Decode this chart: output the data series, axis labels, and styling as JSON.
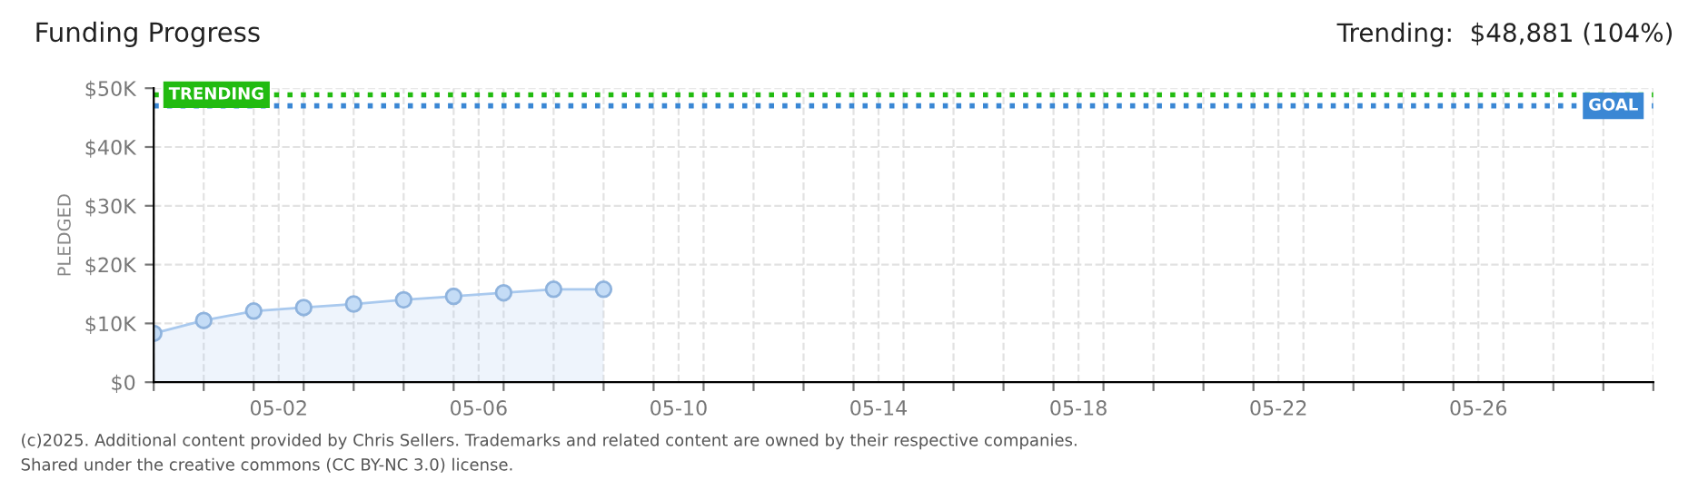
{
  "chart_data": {
    "type": "area",
    "title": "Funding Progress",
    "ylabel": "PLEDGED",
    "annotations": [
      "Trending:  $48,881 (104%)",
      "(c)2025. Additional content provided by Chris Sellers. Trademarks and related content are owned by their respective companies.",
      "Shared under the creative commons (CC BY-NC 3.0) license."
    ],
    "x": [
      "2025-04-30",
      "2025-05-01",
      "2025-05-02",
      "2025-05-03",
      "2025-05-04",
      "2025-05-05",
      "2025-05-06",
      "2025-05-07",
      "2025-05-08",
      "2025-05-09"
    ],
    "series": [
      {
        "color": "#a9c9ee",
        "values": [
          8300,
          10500,
          12100,
          12700,
          13300,
          14000,
          14600,
          15200,
          15800,
          15800
        ]
      }
    ],
    "marker": "circle",
    "grid": true,
    "xlim": [
      "2025-04-30",
      "2025-05-30"
    ],
    "xticks": [
      {
        "value": "2025-04-30",
        "label": null
      },
      {
        "value": "2025-05-01",
        "label": null
      },
      {
        "value": "2025-05-02",
        "label": null
      },
      {
        "value": "2025-05-03",
        "label": null
      },
      {
        "value": "2025-05-04",
        "label": null
      },
      {
        "value": "2025-05-05",
        "label": null
      },
      {
        "value": "2025-05-06",
        "label": null
      },
      {
        "value": "2025-05-07",
        "label": null
      },
      {
        "value": "2025-05-08",
        "label": null
      },
      {
        "value": "2025-05-09",
        "label": null
      },
      {
        "value": "2025-05-10",
        "label": null
      },
      {
        "value": "2025-05-11",
        "label": null
      },
      {
        "value": "2025-05-12",
        "label": null
      },
      {
        "value": "2025-05-13",
        "label": null
      },
      {
        "value": "2025-05-14",
        "label": null
      },
      {
        "value": "2025-05-15",
        "label": null
      },
      {
        "value": "2025-05-16",
        "label": null
      },
      {
        "value": "2025-05-17",
        "label": null
      },
      {
        "value": "2025-05-18",
        "label": null
      },
      {
        "value": "2025-05-19",
        "label": null
      },
      {
        "value": "2025-05-20",
        "label": null
      },
      {
        "value": "2025-05-21",
        "label": null
      },
      {
        "value": "2025-05-22",
        "label": null
      },
      {
        "value": "2025-05-23",
        "label": null
      },
      {
        "value": "2025-05-24",
        "label": null
      },
      {
        "value": "2025-05-25",
        "label": null
      },
      {
        "value": "2025-05-26",
        "label": null
      },
      {
        "value": "2025-05-27",
        "label": null
      },
      {
        "value": "2025-05-28",
        "label": null
      },
      {
        "value": "2025-05-29",
        "label": null
      },
      {
        "value": "2025-05-30",
        "label": null
      },
      {
        "value": "2025-05-02T12:00",
        "label": "05-02"
      },
      {
        "value": "2025-05-06T12:00",
        "label": "05-06"
      },
      {
        "value": "2025-05-10T12:00",
        "label": "05-10"
      },
      {
        "value": "2025-05-14T12:00",
        "label": "05-14"
      },
      {
        "value": "2025-05-18T12:00",
        "label": "05-18"
      },
      {
        "value": "2025-05-22T12:00",
        "label": "05-22"
      },
      {
        "value": "2025-05-26T12:00",
        "label": "05-26"
      }
    ],
    "ylim": [
      0,
      50000
    ],
    "yticks": [
      {
        "value": 0,
        "label": "$0"
      },
      {
        "value": 10000,
        "label": "$10K"
      },
      {
        "value": 20000,
        "label": "$20K"
      },
      {
        "value": 30000,
        "label": "$30K"
      },
      {
        "value": 40000,
        "label": "$40K"
      },
      {
        "value": 50000,
        "label": "$50K"
      }
    ],
    "ref_lines": [
      {
        "axis": "y",
        "value": 48881,
        "label": "TRENDING",
        "color": "#22bb11",
        "line_style": "dotted"
      },
      {
        "axis": "y",
        "value": 47000,
        "label": "GOAL",
        "color": "#3a87d4",
        "line_style": "dotted"
      }
    ]
  }
}
